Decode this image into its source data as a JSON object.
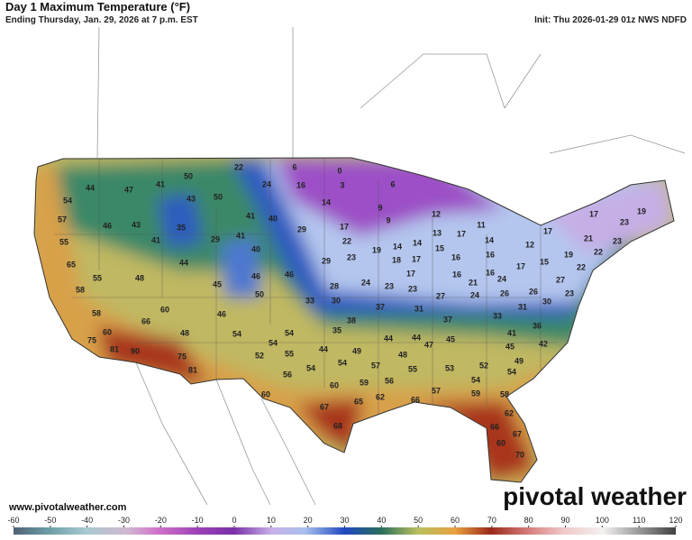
{
  "header": {
    "title": "Day 1 Maximum Temperature (°F)",
    "subtitle": "Ending Thursday, Jan. 29, 2026 at 7 p.m. EST",
    "init": "Init: Thu 2026-01-29 01z NWS NDFD"
  },
  "map": {
    "temperatures": [
      44,
      47,
      41,
      50,
      22,
      6,
      0,
      54,
      50,
      24,
      16,
      3,
      6,
      43,
      14,
      9,
      57,
      46,
      43,
      35,
      41,
      40,
      17,
      9,
      12,
      11,
      55,
      41,
      29,
      41,
      29,
      22,
      19,
      14,
      14,
      13,
      17,
      14,
      12,
      17,
      17,
      23,
      19,
      21,
      23,
      65,
      44,
      40,
      23,
      18,
      15,
      17,
      16,
      16,
      19,
      22,
      55,
      48,
      46,
      46,
      29,
      17,
      16,
      16,
      17,
      15,
      22,
      58,
      45,
      50,
      28,
      24,
      23,
      23,
      21,
      24,
      27,
      24,
      26,
      26,
      23,
      58,
      60,
      46,
      33,
      30,
      37,
      31,
      37,
      33,
      31,
      30,
      27,
      60,
      66,
      48,
      54,
      54,
      38,
      44,
      44,
      41,
      36,
      75,
      54,
      35,
      44,
      49,
      47,
      45,
      45,
      42,
      49,
      81,
      90,
      75,
      52,
      55,
      48,
      53,
      52,
      54,
      81,
      54,
      54,
      57,
      55,
      56,
      59,
      54,
      60,
      60,
      56,
      62,
      66,
      57,
      59,
      58,
      67,
      65,
      62,
      66,
      68,
      60,
      67,
      70
    ]
  },
  "footer": {
    "website": "www.pivotalweather.com",
    "brand": "pivotal weather"
  },
  "colorbar": {
    "range": [
      -60,
      120
    ],
    "ticks": [
      -60,
      -50,
      -40,
      -30,
      -20,
      -10,
      0,
      10,
      20,
      30,
      40,
      50,
      60,
      70,
      80,
      90,
      100,
      110,
      120
    ]
  }
}
